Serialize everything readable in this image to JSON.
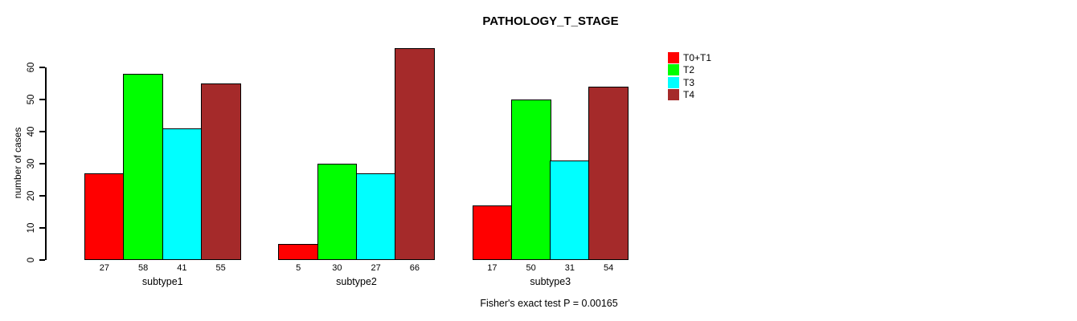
{
  "chart_data": {
    "type": "bar",
    "title": "PATHOLOGY_T_STAGE",
    "ylabel": "number of cases",
    "xlabel": "",
    "ylim": [
      0,
      60
    ],
    "yticks": [
      0,
      10,
      20,
      30,
      40,
      50,
      60
    ],
    "grid": false,
    "legend_position": "right",
    "categories": [
      "subtype1",
      "subtype2",
      "subtype3"
    ],
    "series": [
      {
        "name": "T0+T1",
        "color": "#ff0000",
        "values": [
          27,
          5,
          17
        ]
      },
      {
        "name": "T2",
        "color": "#00ff00",
        "values": [
          58,
          30,
          50
        ]
      },
      {
        "name": "T3",
        "color": "#00ffff",
        "values": [
          41,
          27,
          31
        ]
      },
      {
        "name": "T4",
        "color": "#a52a2a",
        "values": [
          55,
          66,
          54
        ]
      }
    ],
    "bar_value_labels_shown": true,
    "annotation": "Fisher's exact test P = 0.00165"
  },
  "colors": {
    "background": "#ffffff",
    "axis": "#000000",
    "text": "#000000"
  }
}
